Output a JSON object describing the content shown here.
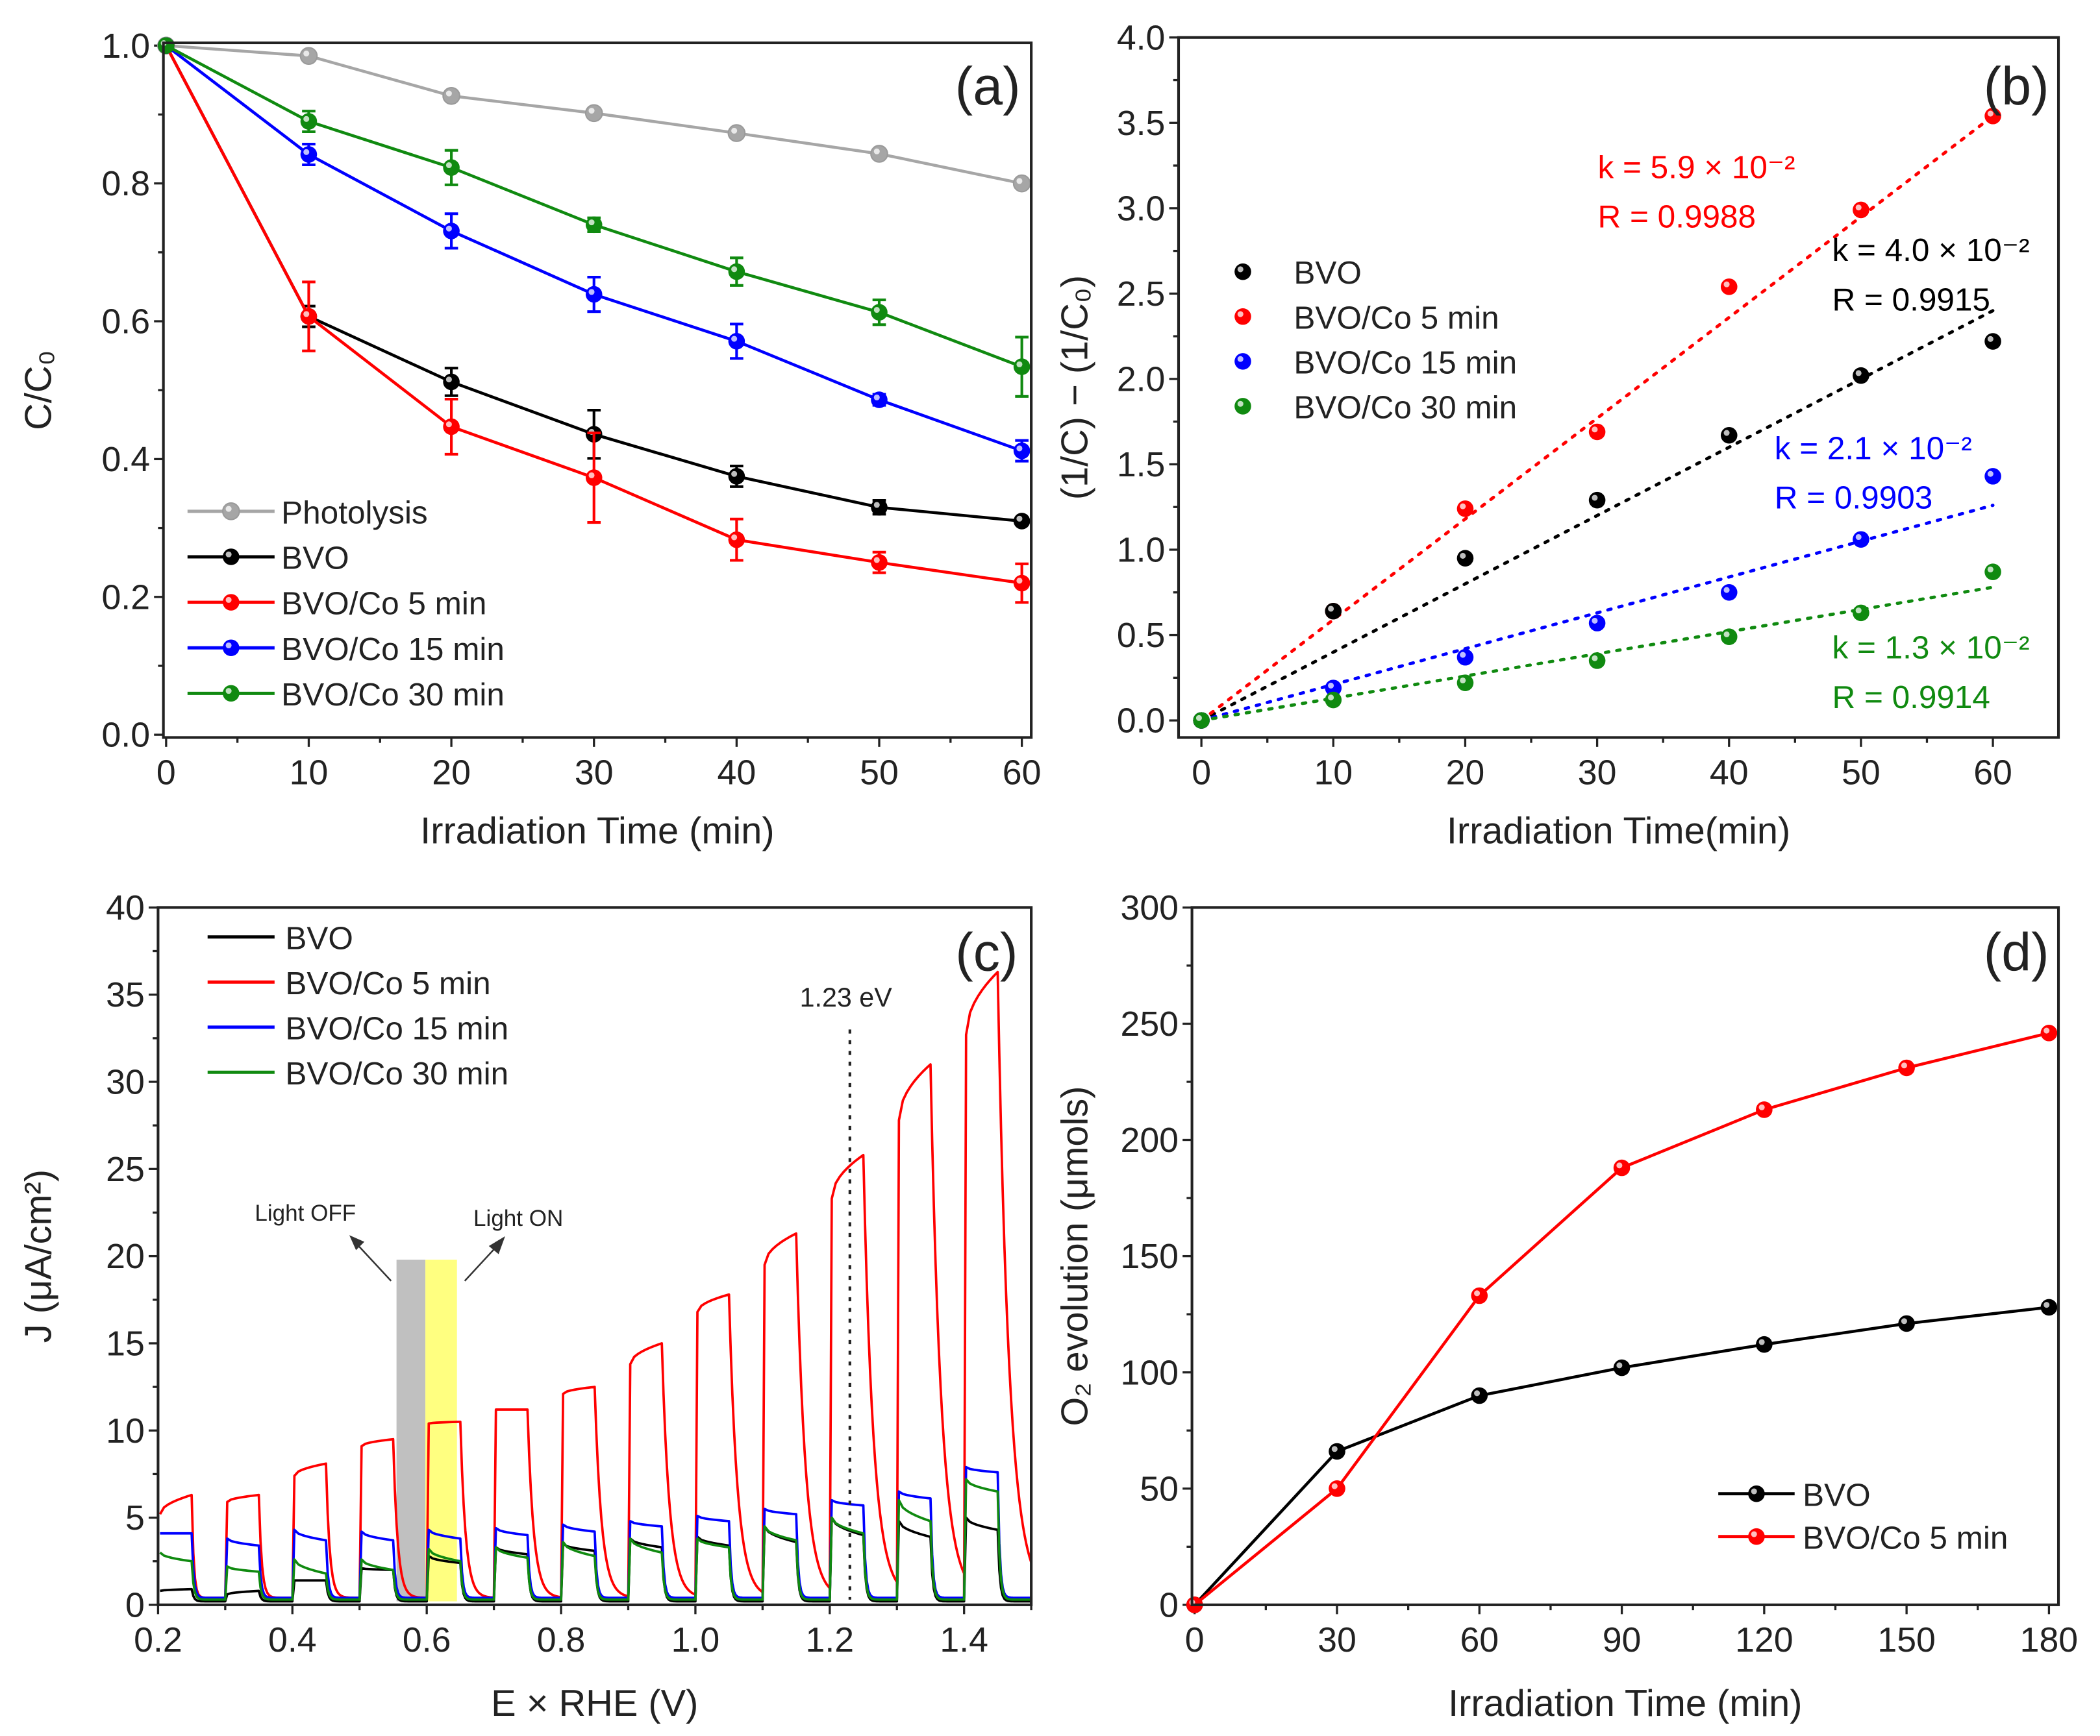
{
  "chart_data": [
    {
      "type": "line",
      "panel_label": "(a)",
      "xlabel": "Irradiation Time (min)",
      "ylabel": "C/C₀",
      "xlim": [
        -0.19,
        60.66
      ],
      "ylim": [
        -0.004,
        1.004
      ],
      "xticks": [
        0,
        10,
        20,
        30,
        40,
        50,
        60
      ],
      "xtick_labels": [
        "0",
        "10",
        "20",
        "30",
        "40",
        "50",
        "60"
      ],
      "yticks": [
        0,
        0.2,
        0.4,
        0.6,
        0.8,
        1.0
      ],
      "ytick_labels": [
        "0.0",
        "0.2",
        "0.4",
        "0.6",
        "0.8",
        "1.0"
      ],
      "x_minor": 5,
      "y_minor": 0.1,
      "legend_placement": "lower-left",
      "x": [
        0,
        10,
        20,
        30,
        40,
        50,
        60
      ],
      "series": [
        {
          "name": "Photolysis",
          "color": "#a6a6a6",
          "values": [
            1.0,
            0.985,
            0.927,
            0.902,
            0.873,
            0.843,
            0.8
          ],
          "errors": [
            0,
            0,
            0,
            0,
            0,
            0,
            0
          ]
        },
        {
          "name": "BVO",
          "color": "#000000",
          "values": [
            1.0,
            0.607,
            0.512,
            0.436,
            0.375,
            0.33,
            0.31
          ],
          "errors": [
            0,
            0.015,
            0.02,
            0.035,
            0.015,
            0.01,
            0.005
          ]
        },
        {
          "name": "BVO/Co 5 min",
          "color": "#ff0000",
          "values": [
            1.0,
            0.607,
            0.447,
            0.373,
            0.283,
            0.25,
            0.22
          ],
          "errors": [
            0,
            0.05,
            0.04,
            0.065,
            0.03,
            0.015,
            0.028
          ]
        },
        {
          "name": "BVO/Co 15 min",
          "color": "#0000ff",
          "values": [
            1.0,
            0.842,
            0.731,
            0.639,
            0.571,
            0.486,
            0.412
          ],
          "errors": [
            0,
            0.015,
            0.025,
            0.025,
            0.025,
            0.008,
            0.015
          ]
        },
        {
          "name": "BVO/Co 30 min",
          "color": "#108a10",
          "values": [
            1.0,
            0.89,
            0.823,
            0.74,
            0.672,
            0.613,
            0.534
          ],
          "errors": [
            0,
            0.015,
            0.025,
            0.01,
            0.02,
            0.018,
            0.043
          ]
        }
      ]
    },
    {
      "type": "scatter",
      "panel_label": "(b)",
      "xlabel": "Irradiation Time(min)",
      "ylabel": "(1/C) − (1/C₀)",
      "xlim": [
        -1.73,
        64.97
      ],
      "ylim": [
        -0.1,
        4.0
      ],
      "xticks": [
        0,
        10,
        20,
        30,
        40,
        50,
        60
      ],
      "xtick_labels": [
        "0",
        "10",
        "20",
        "30",
        "40",
        "50",
        "60"
      ],
      "yticks": [
        0,
        0.5,
        1.0,
        1.5,
        2.0,
        2.5,
        3.0,
        3.5,
        4.0
      ],
      "ytick_labels": [
        "0.0",
        "0.5",
        "1.0",
        "1.5",
        "2.0",
        "2.5",
        "3.0",
        "3.5",
        "4.0"
      ],
      "x_minor": 5,
      "y_minor": 0.25,
      "legend_placement": "center-left",
      "x": [
        0,
        10,
        20,
        30,
        40,
        50,
        60
      ],
      "series": [
        {
          "name": "BVO",
          "color": "#000000",
          "values": [
            0,
            0.64,
            0.95,
            1.29,
            1.67,
            2.02,
            2.22
          ],
          "fit_slope": 0.04,
          "k_label": "k = 4.0 × 10⁻²",
          "r_label": "R = 0.9915"
        },
        {
          "name": "BVO/Co 5 min",
          "color": "#ff0000",
          "values": [
            0,
            0.64,
            1.24,
            1.69,
            2.54,
            2.99,
            3.54
          ],
          "fit_slope": 0.059,
          "k_label": "k = 5.9 × 10⁻²",
          "r_label": "R = 0.9988"
        },
        {
          "name": "BVO/Co 15 min",
          "color": "#0000ff",
          "values": [
            0,
            0.19,
            0.37,
            0.57,
            0.75,
            1.06,
            1.43
          ],
          "fit_slope": 0.021,
          "k_label": "k = 2.1 × 10⁻²",
          "r_label": "R = 0.9903"
        },
        {
          "name": "BVO/Co 30 min",
          "color": "#108a10",
          "values": [
            0,
            0.12,
            0.22,
            0.35,
            0.49,
            0.63,
            0.87
          ],
          "fit_slope": 0.013,
          "k_label": "k = 1.3 × 10⁻²",
          "r_label": "R = 0.9914"
        }
      ]
    },
    {
      "type": "line",
      "panel_label": "(c)",
      "xlabel": "E × RHE (V)",
      "ylabel": "J (μA/cm²)",
      "xlim": [
        0.2,
        1.5
      ],
      "ylim": [
        0,
        40
      ],
      "xticks": [
        0.2,
        0.4,
        0.6,
        0.8,
        1.0,
        1.2,
        1.4
      ],
      "xtick_labels": [
        "0.2",
        "0.4",
        "0.6",
        "0.8",
        "1.0",
        "1.2",
        "1.4"
      ],
      "yticks": [
        0,
        5,
        10,
        15,
        20,
        25,
        30,
        35,
        40
      ],
      "ytick_labels": [
        "0",
        "5",
        "10",
        "15",
        "20",
        "25",
        "30",
        "35",
        "40"
      ],
      "x_minor": 0.1,
      "y_minor": 2.5,
      "legend_placement": "top-left",
      "light_on_potentials": [
        0.2,
        0.3,
        0.4,
        0.5,
        0.6,
        0.7,
        0.8,
        0.9,
        1.0,
        1.1,
        1.2,
        1.3,
        1.4
      ],
      "pulse_width": 0.05,
      "series": [
        {
          "name": "BVO",
          "color": "#000000",
          "dark": 0.2,
          "on_start": [
            0.8,
            0.6,
            1.4,
            2.1,
            2.8,
            3.3,
            3.5,
            3.8,
            3.9,
            4.5,
            5.0,
            4.8,
            5.0
          ],
          "on_end": [
            0.9,
            0.8,
            1.4,
            2.0,
            2.4,
            2.9,
            3.1,
            3.3,
            3.4,
            3.6,
            4.0,
            3.9,
            4.3
          ]
        },
        {
          "name": "BVO/Co 5 min",
          "color": "#ff0000",
          "dark": 0.4,
          "on_start": [
            5.2,
            5.9,
            7.4,
            9.1,
            10.4,
            11.2,
            12.1,
            13.8,
            16.8,
            19.5,
            23.3,
            27.8,
            32.7
          ],
          "on_end": [
            6.3,
            6.3,
            8.1,
            9.5,
            10.5,
            11.2,
            12.5,
            15.0,
            17.8,
            21.3,
            25.8,
            31.0,
            36.3
          ]
        },
        {
          "name": "BVO/Co 15 min",
          "color": "#0000ff",
          "dark": 0.4,
          "on_start": [
            4.1,
            3.8,
            4.3,
            4.2,
            4.3,
            4.4,
            4.6,
            4.8,
            5.1,
            5.5,
            6.0,
            6.5,
            7.9
          ],
          "on_end": [
            4.1,
            3.4,
            3.7,
            3.7,
            3.8,
            4.0,
            4.2,
            4.5,
            4.8,
            5.2,
            5.7,
            6.1,
            7.6
          ]
        },
        {
          "name": "BVO/Co 30 min",
          "color": "#108a10",
          "dark": 0.3,
          "on_start": [
            3.0,
            2.2,
            2.6,
            2.6,
            3.2,
            3.3,
            3.6,
            3.8,
            3.8,
            4.5,
            5.0,
            6.0,
            7.2
          ],
          "on_end": [
            2.5,
            1.9,
            1.8,
            2.0,
            2.5,
            2.7,
            2.8,
            3.0,
            3.3,
            3.7,
            4.1,
            4.8,
            6.5
          ]
        }
      ],
      "annotations": {
        "reference_line_x": 1.23,
        "reference_label": "1.23 eV",
        "light_off_label": "Light OFF",
        "light_on_label": "Light ON",
        "light_off_band": [
          0.555,
          0.598
        ],
        "light_on_band": [
          0.598,
          0.645
        ],
        "band_y": [
          0.2,
          19.8
        ],
        "light_off_color": "#c0c0c0",
        "light_on_color": "#ffff80"
      }
    },
    {
      "type": "line",
      "panel_label": "(d)",
      "xlabel": "Irradiation Time (min)",
      "ylabel": "O₂ evolution (μmols)",
      "xlim": [
        -0.56,
        182
      ],
      "ylim": [
        0,
        300
      ],
      "xticks": [
        0,
        30,
        60,
        90,
        120,
        150,
        180
      ],
      "xtick_labels": [
        "0",
        "30",
        "60",
        "90",
        "120",
        "150",
        "180"
      ],
      "yticks": [
        0,
        50,
        100,
        150,
        200,
        250,
        300
      ],
      "ytick_labels": [
        "0",
        "50",
        "100",
        "150",
        "200",
        "250",
        "300"
      ],
      "x_minor": 15,
      "y_minor": 25,
      "legend_placement": "bottom-right",
      "x": [
        0,
        30,
        60,
        90,
        120,
        150,
        180
      ],
      "series": [
        {
          "name": "BVO",
          "color": "#000000",
          "values": [
            0,
            66,
            90,
            102,
            112,
            121,
            128
          ]
        },
        {
          "name": "BVO/Co 5 min",
          "color": "#ff0000",
          "values": [
            0,
            50,
            133,
            188,
            213,
            231,
            246
          ]
        }
      ]
    }
  ]
}
